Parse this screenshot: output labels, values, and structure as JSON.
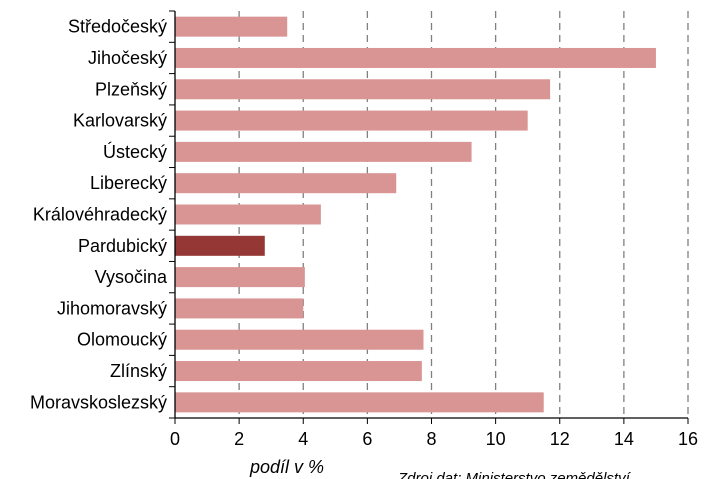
{
  "chart_data": {
    "type": "bar",
    "orientation": "horizontal",
    "categories": [
      "Středočeský",
      "Jihočeský",
      "Plzeňský",
      "Karlovarský",
      "Ústecký",
      "Liberecký",
      "Královéhradecký",
      "Pardubický",
      "Vysočina",
      "Jihomoravský",
      "Olomoucký",
      "Zlínský",
      "Moravskoslezský"
    ],
    "values": [
      3.5,
      15.0,
      11.7,
      11.0,
      9.25,
      6.9,
      4.55,
      2.8,
      4.05,
      4.0,
      7.75,
      7.7,
      11.5
    ],
    "highlight_index": 7,
    "xlim": [
      0,
      16
    ],
    "xticks": [
      0,
      2,
      4,
      6,
      8,
      10,
      12,
      14,
      16
    ],
    "xlabel": "podíl v %",
    "title": "",
    "grid": "vertical dashed",
    "colors": {
      "bar": "#d99594",
      "highlight": "#953735",
      "grid": "#808080",
      "axis": "#000000"
    }
  },
  "source_note": "Zdroj dat: Ministerstvo zemědělství"
}
